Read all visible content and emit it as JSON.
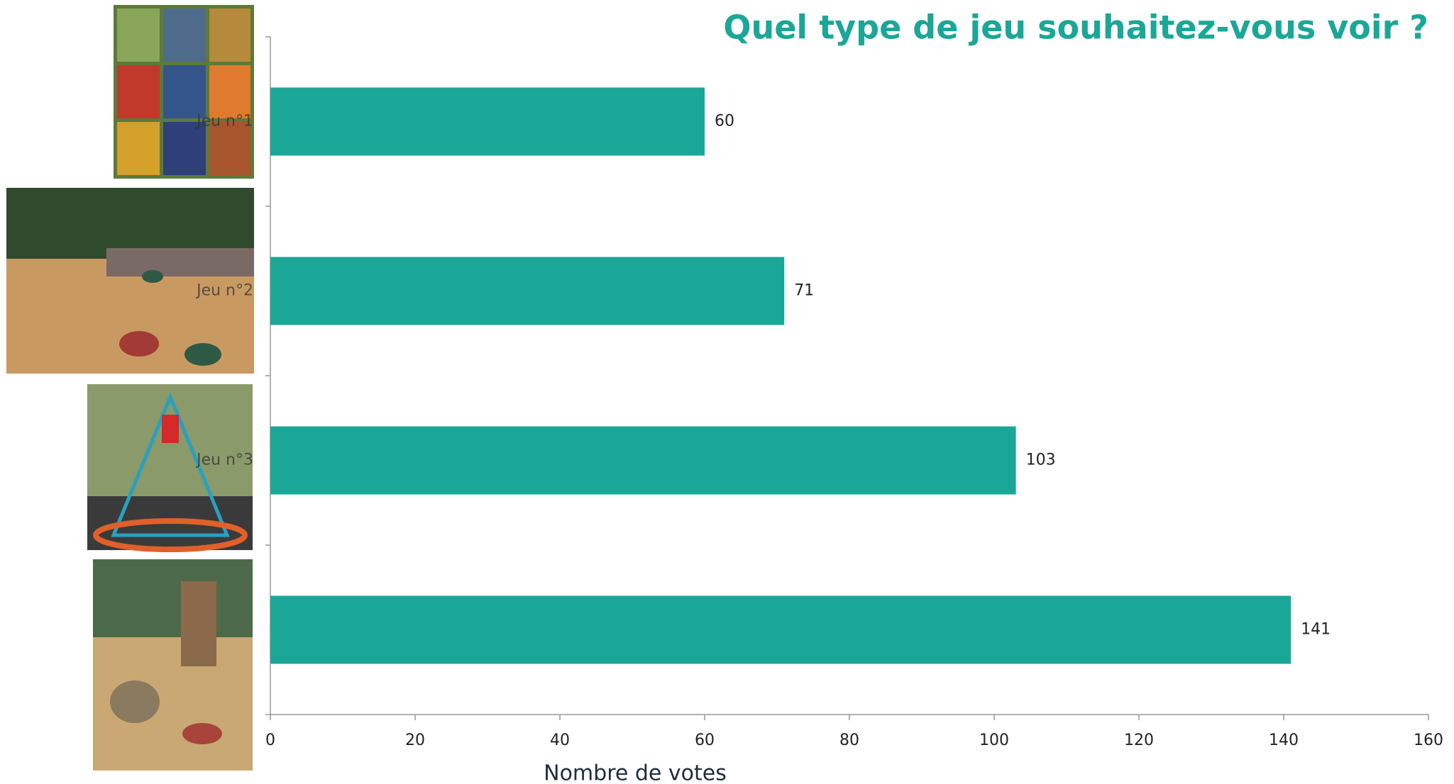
{
  "chart_data": {
    "type": "bar",
    "orientation": "horizontal",
    "title": "Quel type de jeu souhaitez-vous voir ?",
    "xlabel": "Nombre de votes",
    "categories": [
      "Jeu n°1",
      "Jeu n°2",
      "Jeu n°3",
      null
    ],
    "values": [
      60,
      71,
      103,
      141
    ],
    "color": "#1ba797",
    "xlim": [
      0,
      160
    ],
    "xticks": [
      0,
      20,
      40,
      60,
      80,
      100,
      120,
      140,
      160
    ],
    "grid": false,
    "data_labels": true
  }
}
